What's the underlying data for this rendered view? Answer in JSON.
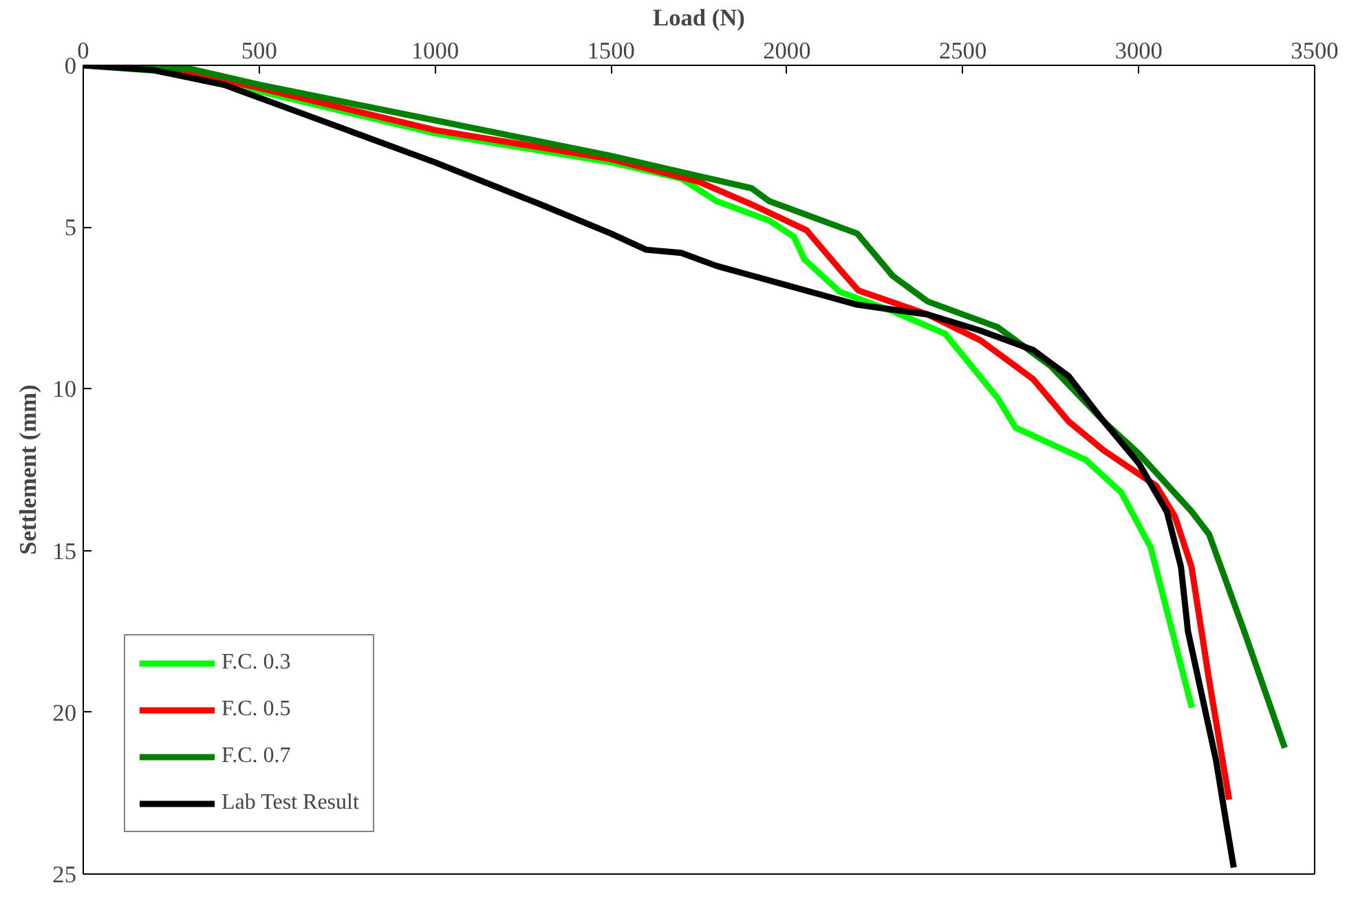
{
  "chart_data": {
    "type": "line",
    "xlabel": "Load (N)",
    "ylabel": "Settlement (mm)",
    "xlim": [
      0,
      3500
    ],
    "xticks": [
      0,
      500,
      1000,
      1500,
      2000,
      2500,
      3000,
      3500
    ],
    "ylim": [
      25,
      0
    ],
    "yticks": [
      0,
      5,
      10,
      15,
      20,
      25
    ],
    "grid": false,
    "legend": "bottom left",
    "marker": "none",
    "line_style": "solid",
    "series": [
      {
        "name": "F.C. 0.3",
        "color": "#00ff00",
        "x": [
          0,
          250,
          500,
          1000,
          1500,
          1700,
          1800,
          1950,
          2020,
          2050,
          2150,
          2300,
          2450,
          2600,
          2650,
          2750,
          2850,
          2950,
          3034,
          3151
        ],
        "values": [
          0,
          0.2,
          0.8,
          2.1,
          3.0,
          3.5,
          4.2,
          4.8,
          5.3,
          6.0,
          7.0,
          7.6,
          8.3,
          10.3,
          11.2,
          11.7,
          12.2,
          13.2,
          14.9,
          19.86
        ]
      },
      {
        "name": "F.C. 0.5",
        "color": "#ff0000",
        "x": [
          0,
          250,
          500,
          1000,
          1500,
          1750,
          1900,
          2056,
          2150,
          2203,
          2400,
          2550,
          2700,
          2800,
          2900,
          3050,
          3103,
          3150,
          3200,
          3257
        ],
        "values": [
          0,
          0.1,
          0.7,
          2.0,
          2.9,
          3.6,
          4.3,
          5.1,
          6.3,
          6.96,
          7.7,
          8.5,
          9.7,
          11.0,
          11.9,
          13.0,
          13.95,
          15.5,
          19.0,
          22.7
        ]
      },
      {
        "name": "F.C. 0.7",
        "color": "#008000",
        "x": [
          0,
          300,
          500,
          1000,
          1500,
          1900,
          1950,
          2100,
          2200,
          2300,
          2400,
          2600,
          2750,
          2900,
          3000,
          3151,
          3200,
          3300,
          3415
        ],
        "values": [
          0,
          0.1,
          0.6,
          1.7,
          2.8,
          3.8,
          4.2,
          4.8,
          5.2,
          6.5,
          7.3,
          8.1,
          9.3,
          11.0,
          12.0,
          13.8,
          14.5,
          17.5,
          21.1
        ]
      },
      {
        "name": "Lab Test Result",
        "color": "#000000",
        "x": [
          0,
          200,
          400,
          600,
          1000,
          1300,
          1500,
          1600,
          1700,
          1800,
          1900,
          2000,
          2100,
          2200,
          2400,
          2550,
          2700,
          2800,
          2900,
          3000,
          3080,
          3120,
          3140,
          3180,
          3220,
          3250,
          3270
        ],
        "values": [
          0,
          0.15,
          0.6,
          1.4,
          3.0,
          4.3,
          5.2,
          5.7,
          5.8,
          6.2,
          6.5,
          6.8,
          7.1,
          7.4,
          7.7,
          8.2,
          8.8,
          9.6,
          11.0,
          12.3,
          13.8,
          15.5,
          17.5,
          19.5,
          21.5,
          23.5,
          24.8
        ]
      }
    ]
  }
}
